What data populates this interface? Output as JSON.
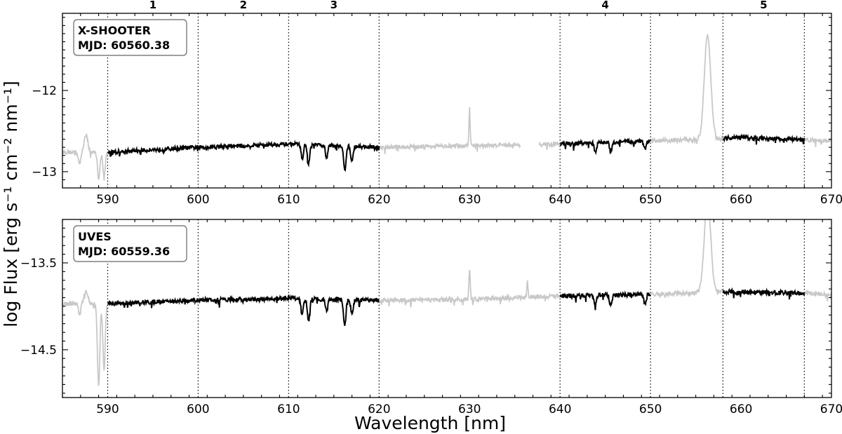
{
  "figure": {
    "xlabel": "Wavelength [nm]",
    "ylabel": "log Flux [erg s⁻¹ cm⁻² nm⁻¹]"
  },
  "colors": {
    "highlighted_spectrum": "#000000",
    "masked_spectrum": "#c8c8c8",
    "axes": "#000000"
  },
  "region_labels": [
    {
      "label": "1",
      "x": 595
    },
    {
      "label": "2",
      "x": 605
    },
    {
      "label": "3",
      "x": 615
    },
    {
      "label": "4",
      "x": 645
    },
    {
      "label": "5",
      "x": 662.5
    }
  ],
  "chart_data": [
    {
      "type": "line",
      "instrument": "X-SHOOTER",
      "mjd": "MJD: 60560.38",
      "xlim": [
        585,
        670
      ],
      "ylim": [
        -13.2,
        -11.05
      ],
      "xticks": [
        590,
        600,
        610,
        620,
        630,
        640,
        650,
        660,
        670
      ],
      "yticks": [
        {
          "value": -12,
          "label": "−12"
        },
        {
          "value": -13,
          "label": "−13"
        }
      ],
      "region_boundaries": [
        590,
        600,
        610,
        620,
        640,
        650,
        658,
        667
      ],
      "highlight_ranges": [
        [
          590,
          620
        ],
        [
          640,
          650
        ],
        [
          658,
          667
        ]
      ],
      "gaps": [
        [
          635.6,
          637.6
        ]
      ],
      "continuum": [
        [
          585,
          -12.76
        ],
        [
          590,
          -12.76
        ],
        [
          600,
          -12.7
        ],
        [
          610,
          -12.66
        ],
        [
          620,
          -12.7
        ],
        [
          630,
          -12.68
        ],
        [
          640,
          -12.66
        ],
        [
          650,
          -12.62
        ],
        [
          656,
          -12.6
        ],
        [
          660,
          -12.58
        ],
        [
          670,
          -12.62
        ]
      ],
      "absorption_lines": [
        [
          589.0,
          0.32
        ],
        [
          589.6,
          0.3
        ],
        [
          611.5,
          0.17
        ],
        [
          612.2,
          0.24
        ],
        [
          614.2,
          0.15
        ],
        [
          616.2,
          0.3
        ],
        [
          617.0,
          0.18
        ],
        [
          643.9,
          0.12
        ],
        [
          645.6,
          0.13
        ],
        [
          649.4,
          0.1
        ],
        [
          586.9,
          0.15
        ]
      ],
      "emission_lines": [
        [
          587.6,
          0.22,
          0.2
        ],
        [
          630.0,
          0.45,
          0.07
        ],
        [
          656.3,
          1.3,
          0.35
        ]
      ],
      "noise_amplitude": 0.05
    },
    {
      "type": "line",
      "instrument": "UVES",
      "mjd": "MJD: 60559.36",
      "xlim": [
        585,
        670
      ],
      "ylim": [
        -15.05,
        -13.0
      ],
      "xticks": [
        590,
        600,
        610,
        620,
        630,
        640,
        650,
        660,
        670
      ],
      "yticks": [
        {
          "value": -13.5,
          "label": "−13.5"
        },
        {
          "value": -14.5,
          "label": "−14.5"
        }
      ],
      "region_boundaries": [
        590,
        600,
        610,
        620,
        640,
        650,
        658,
        667
      ],
      "highlight_ranges": [
        [
          590,
          620
        ],
        [
          640,
          650
        ],
        [
          658,
          667
        ]
      ],
      "gaps": [],
      "continuum": [
        [
          585,
          -13.97
        ],
        [
          590,
          -13.97
        ],
        [
          600,
          -13.93
        ],
        [
          610,
          -13.91
        ],
        [
          620,
          -13.93
        ],
        [
          630,
          -13.92
        ],
        [
          640,
          -13.88
        ],
        [
          650,
          -13.86
        ],
        [
          656,
          -13.84
        ],
        [
          660,
          -13.83
        ],
        [
          670,
          -13.86
        ]
      ],
      "absorption_lines": [
        [
          589.0,
          0.95
        ],
        [
          589.6,
          0.75
        ],
        [
          611.5,
          0.17
        ],
        [
          612.2,
          0.25
        ],
        [
          614.2,
          0.14
        ],
        [
          616.2,
          0.3
        ],
        [
          617.0,
          0.17
        ],
        [
          643.9,
          0.12
        ],
        [
          645.6,
          0.13
        ],
        [
          649.4,
          0.1
        ],
        [
          586.9,
          0.12
        ]
      ],
      "emission_lines": [
        [
          587.6,
          0.15,
          0.2
        ],
        [
          630.0,
          0.35,
          0.07
        ],
        [
          636.4,
          0.18,
          0.06
        ],
        [
          656.3,
          1.1,
          0.35
        ]
      ],
      "noise_amplitude": 0.05
    }
  ]
}
